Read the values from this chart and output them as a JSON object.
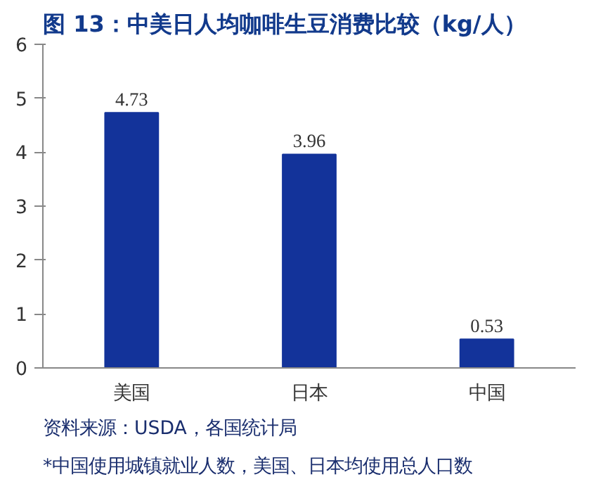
{
  "chart_data": {
    "type": "bar",
    "title": "图 13：中美日人均咖啡生豆消费比较（kg/人）",
    "categories": [
      "美国",
      "日本",
      "中国"
    ],
    "values": [
      4.73,
      3.96,
      0.53
    ],
    "color": "#13339a",
    "ylim": [
      0,
      6
    ],
    "yticks": [
      0,
      1,
      2,
      3,
      4,
      5,
      6
    ],
    "grid": false,
    "data_labels": true,
    "annotations": [
      "资料来源：USDA，各国统计局",
      "*中国使用城镇就业人数，美国、日本均使用总人口数"
    ]
  }
}
